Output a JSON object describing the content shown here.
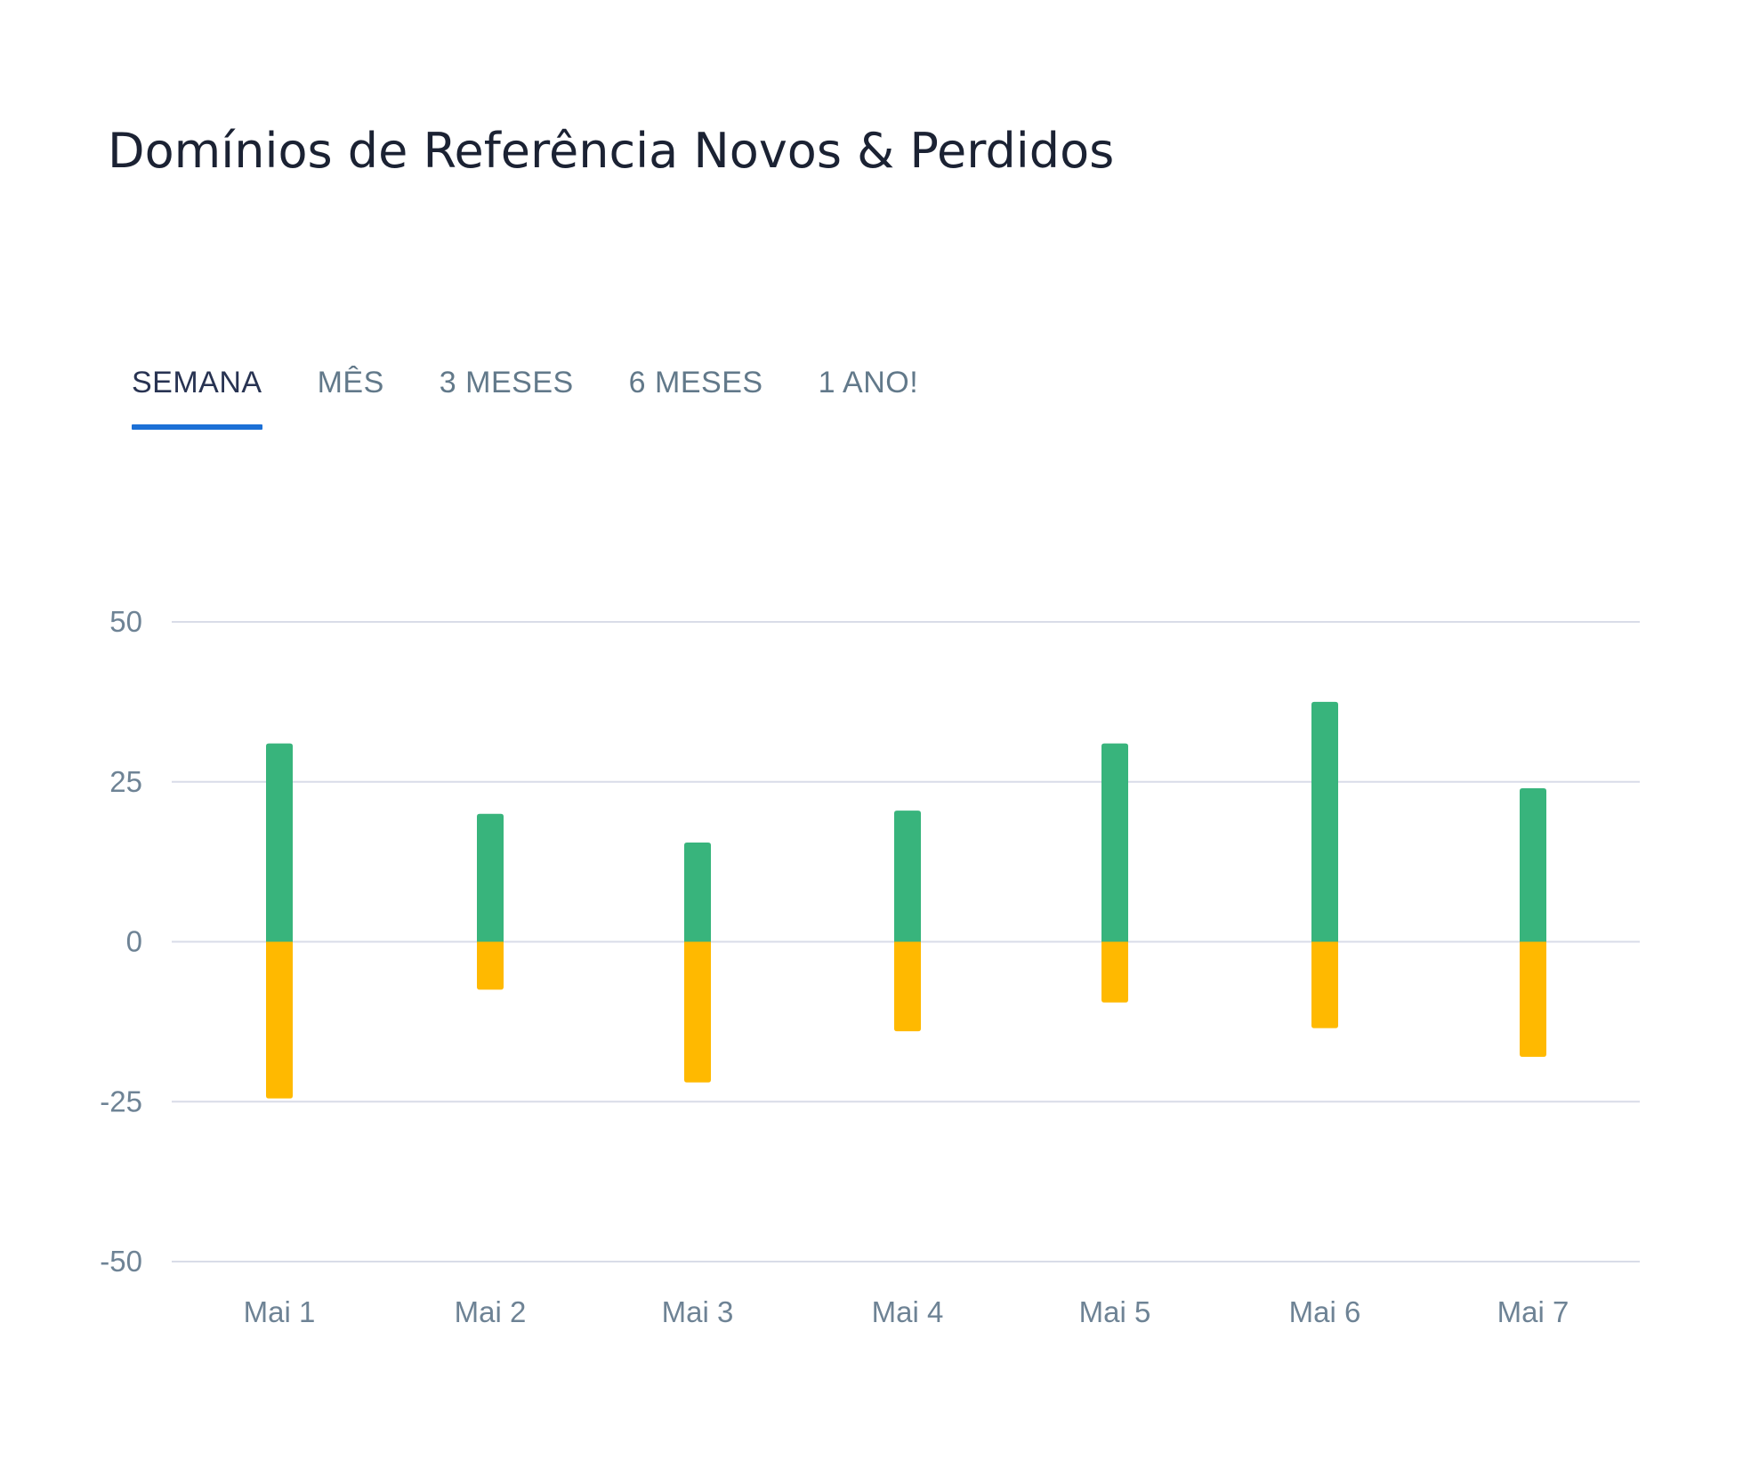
{
  "title": "Domínios de Referência Novos & Perdidos",
  "tabs": [
    {
      "label": "SEMANA",
      "active": true
    },
    {
      "label": "MÊS",
      "active": false
    },
    {
      "label": "3 MESES",
      "active": false
    },
    {
      "label": "6 MESES",
      "active": false
    },
    {
      "label": "1 ANO!",
      "active": false
    }
  ],
  "colors": {
    "new": "#38b47c",
    "lost": "#ffb900",
    "grid": "#d9dce8",
    "tab_indicator": "#1c70d6"
  },
  "chart_data": {
    "type": "bar",
    "stacked": "diverging",
    "categories": [
      "Mai 1",
      "Mai 2",
      "Mai 3",
      "Mai 4",
      "Mai 5",
      "Mai 6",
      "Mai 7"
    ],
    "series": [
      {
        "values": [
          31,
          20,
          15.5,
          20.5,
          31,
          37.5,
          24
        ],
        "color": "#38b47c"
      },
      {
        "values": [
          -24.5,
          -7.5,
          -22,
          -14,
          -9.5,
          -13.5,
          -18
        ],
        "color": "#ffb900"
      }
    ],
    "y_ticks": [
      "50",
      "25",
      "0",
      "-25",
      "-50"
    ],
    "ylim": [
      -50,
      50
    ],
    "grid": true,
    "legend": "none"
  }
}
